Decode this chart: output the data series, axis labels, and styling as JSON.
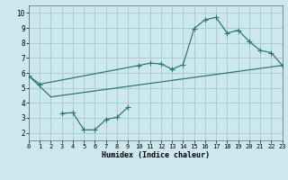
{
  "xlabel": "Humidex (Indice chaleur)",
  "bg_color": "#cce8ee",
  "grid_color": "#aaccd5",
  "line_color": "#2a7b6f",
  "xlim": [
    0,
    23
  ],
  "ylim": [
    1.5,
    10.5
  ],
  "xticks": [
    0,
    1,
    2,
    3,
    4,
    5,
    6,
    7,
    8,
    9,
    10,
    11,
    12,
    13,
    14,
    15,
    16,
    17,
    18,
    19,
    20,
    21,
    22,
    23
  ],
  "yticks": [
    2,
    3,
    4,
    5,
    6,
    7,
    8,
    9,
    10
  ],
  "line1_x": [
    0,
    1,
    10,
    11,
    12,
    13,
    14,
    15,
    16,
    17,
    18,
    19,
    20,
    21,
    22,
    23
  ],
  "line1_y": [
    5.8,
    5.25,
    6.5,
    6.65,
    6.6,
    6.25,
    6.55,
    8.95,
    9.55,
    9.7,
    8.65,
    8.85,
    8.1,
    7.5,
    7.35,
    6.5
  ],
  "line2_x": [
    0,
    2,
    23
  ],
  "line2_y": [
    5.8,
    4.4,
    6.5
  ],
  "line3_x": [
    3,
    4,
    5,
    6,
    7,
    8,
    9
  ],
  "line3_y": [
    3.3,
    3.35,
    2.2,
    2.2,
    2.9,
    3.05,
    3.7
  ]
}
